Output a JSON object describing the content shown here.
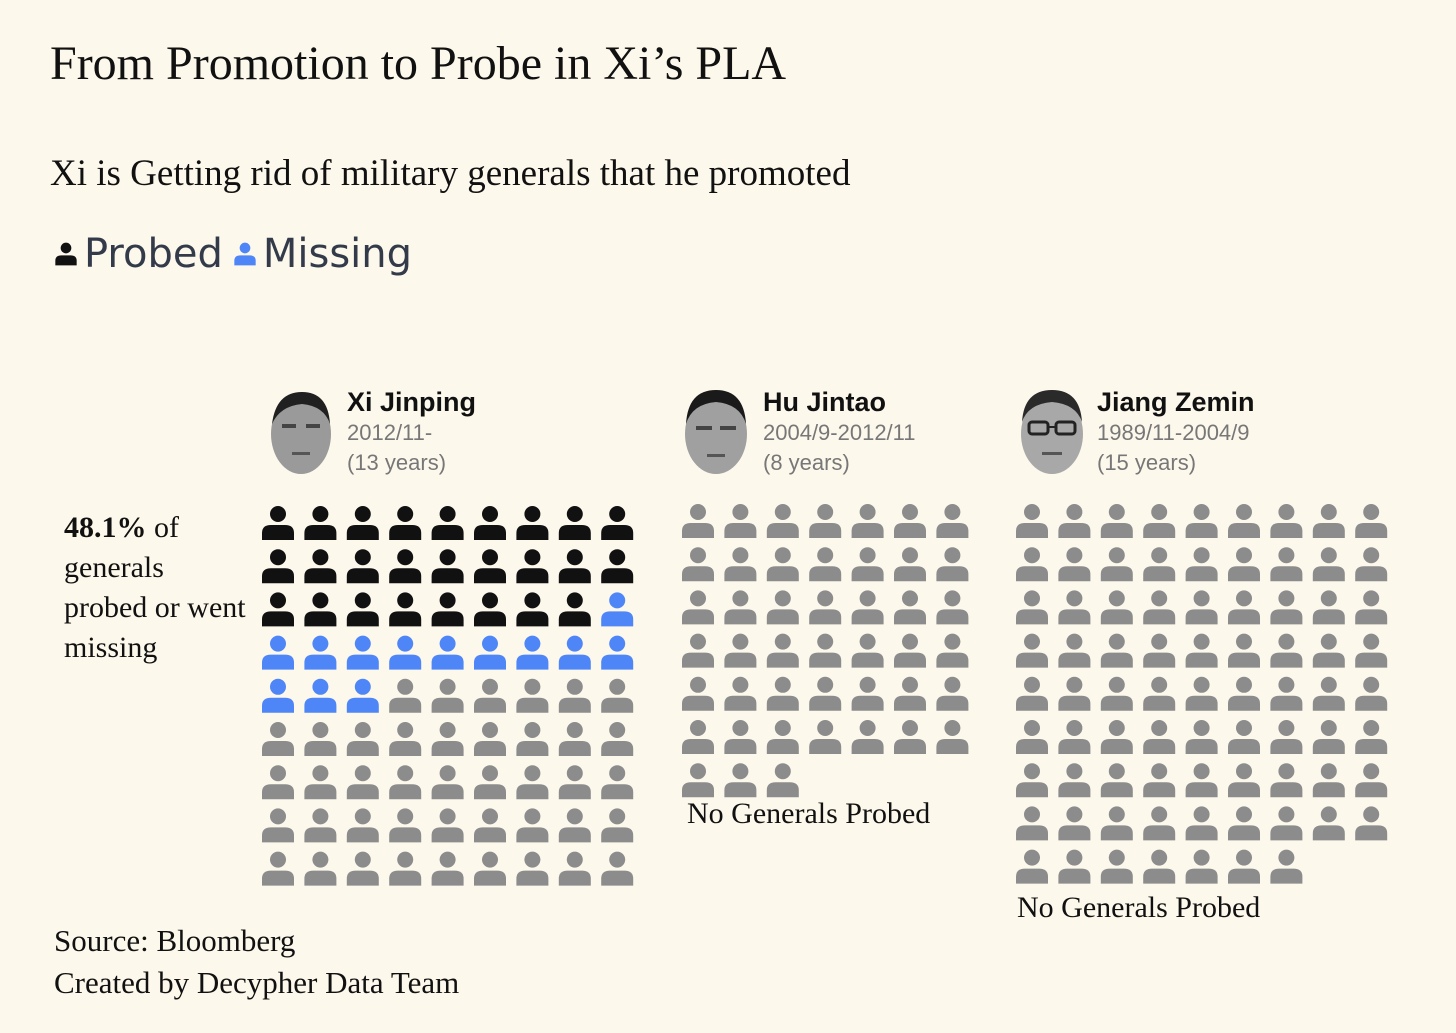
{
  "title": "From Promotion to Probe in Xi’s PLA",
  "subtitle": "Xi is Getting rid of military generals that he promoted",
  "legend": {
    "probed_label": "Probed",
    "missing_label": "Missing"
  },
  "stat": {
    "value": "48.1%",
    "text": "of generals probed or went missing"
  },
  "colors": {
    "background": "#fdf8ec",
    "probed": "#111111",
    "missing": "#4f86f7",
    "other": "#8c8c8c"
  },
  "icon": "person-icon",
  "chart_data": {
    "type": "waffle",
    "unit": "general",
    "panels": [
      {
        "leader": "Xi Jinping",
        "period": "2012/11-",
        "duration": "(13 years)",
        "total": 81,
        "probed": 26,
        "missing": 13,
        "columns": 9,
        "note": ""
      },
      {
        "leader": "Hu Jintao",
        "period": "2004/9-2012/11",
        "duration": "(8 years)",
        "total": 45,
        "probed": 0,
        "missing": 0,
        "columns": 7,
        "note": "No Generals Probed"
      },
      {
        "leader": "Jiang Zemin",
        "period": "1989/11-2004/9",
        "duration": "(15 years)",
        "total": 79,
        "probed": 0,
        "missing": 0,
        "columns": 9,
        "note": "No Generals Probed"
      }
    ]
  },
  "footer": {
    "source": "Source: Bloomberg",
    "credit": "Created by Decypher Data Team"
  }
}
